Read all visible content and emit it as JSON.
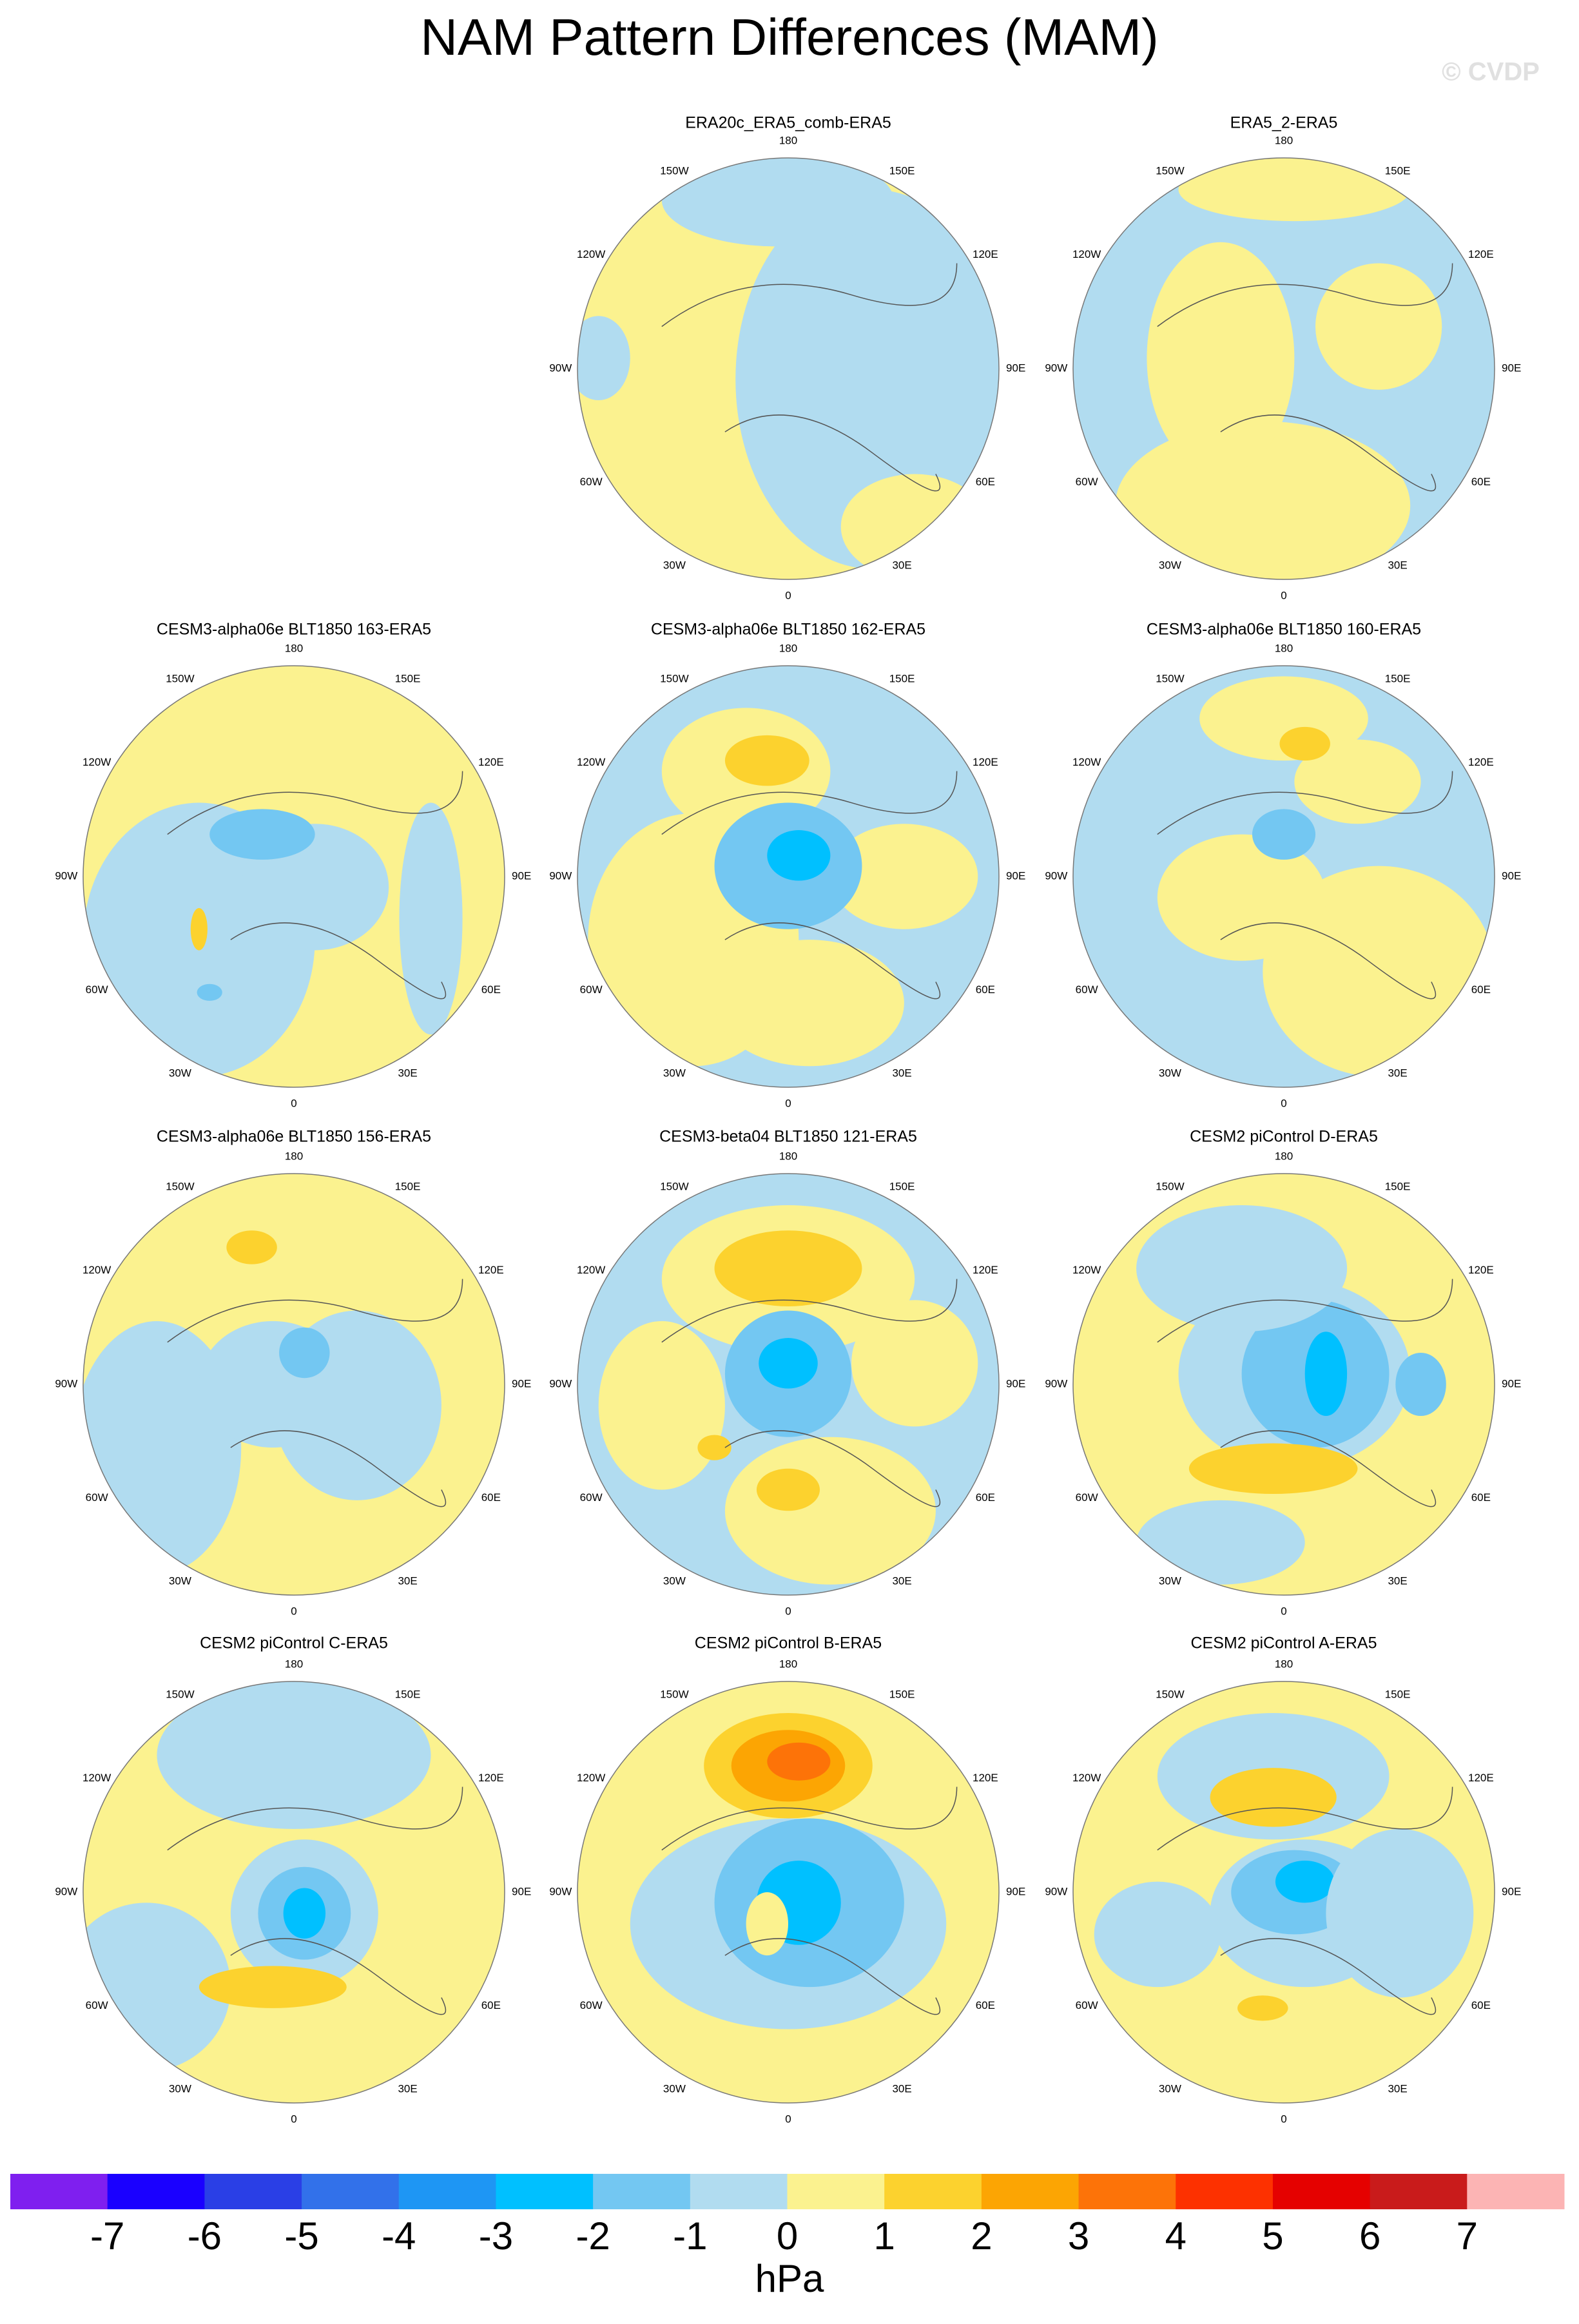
{
  "title": "NAM Pattern Differences (MAM)",
  "watermark": "© CVDP",
  "panels": [
    {
      "title": "ERA20c_ERA5_comb-ERA5"
    },
    {
      "title": "ERA5_2-ERA5"
    },
    {
      "title": "CESM3-alpha06e BLT1850 163-ERA5"
    },
    {
      "title": "CESM3-alpha06e BLT1850 162-ERA5"
    },
    {
      "title": "CESM3-alpha06e BLT1850 160-ERA5"
    },
    {
      "title": "CESM3-alpha06e BLT1850 156-ERA5"
    },
    {
      "title": "CESM3-beta04 BLT1850 121-ERA5"
    },
    {
      "title": "CESM2 piControl D-ERA5"
    },
    {
      "title": "CESM2 piControl C-ERA5"
    },
    {
      "title": "CESM2 piControl B-ERA5"
    },
    {
      "title": "CESM2 piControl A-ERA5"
    }
  ],
  "longitude_labels": [
    {
      "value": 180,
      "label": "180"
    },
    {
      "value": 150,
      "label": "150E"
    },
    {
      "value": 120,
      "label": "120E"
    },
    {
      "value": 90,
      "label": "90E"
    },
    {
      "value": 60,
      "label": "60E"
    },
    {
      "value": 30,
      "label": "30E"
    },
    {
      "value": 0,
      "label": "0"
    },
    {
      "value": -30,
      "label": "30W"
    },
    {
      "value": -60,
      "label": "60W"
    },
    {
      "value": -90,
      "label": "90W"
    },
    {
      "value": -120,
      "label": "120W"
    },
    {
      "value": -150,
      "label": "150W"
    }
  ],
  "colorbar": {
    "label": "hPa",
    "levels": [
      -7,
      -6,
      -5,
      -4,
      -3,
      -2,
      -1,
      0,
      1,
      2,
      3,
      4,
      5,
      6,
      7
    ],
    "colors": [
      "#7f1fef",
      "#1a00ff",
      "#2a3fe6",
      "#3271ea",
      "#1e96f4",
      "#00c0ff",
      "#73c7f2",
      "#b1dcf0",
      "#fbf28f",
      "#fcd22e",
      "#fca503",
      "#fd7308",
      "#fd3100",
      "#e50100",
      "#c91b1b",
      "#fcb4b4"
    ]
  }
}
